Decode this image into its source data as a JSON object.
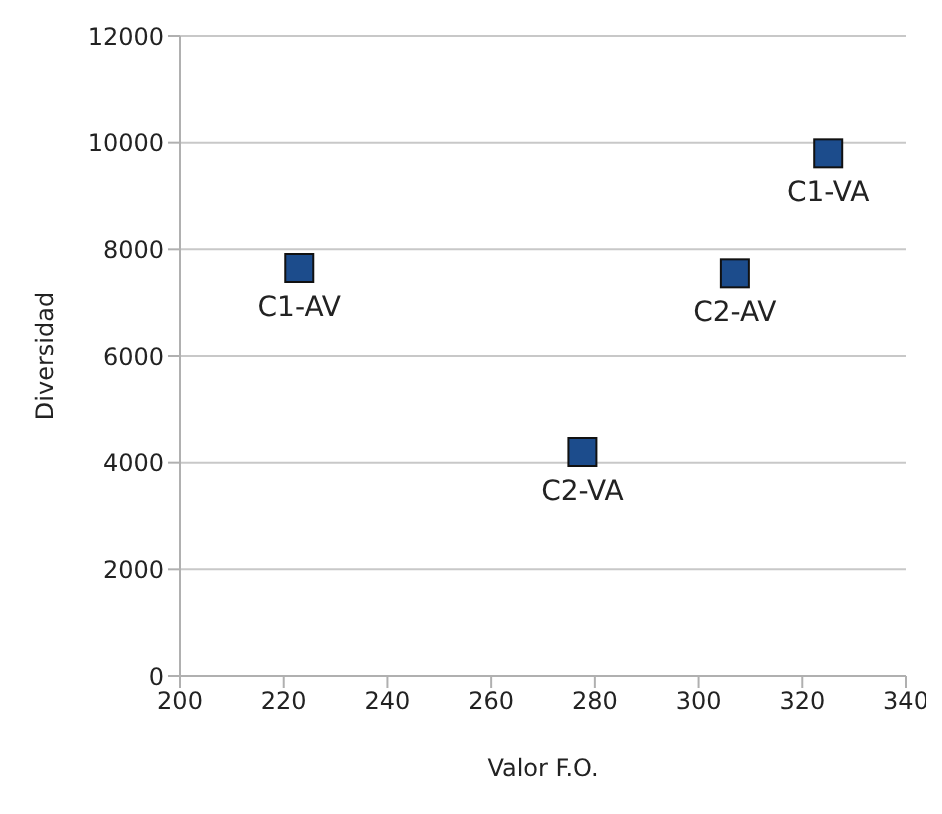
{
  "chart_data": {
    "type": "scatter",
    "xlabel": "Valor F.O.",
    "ylabel": "Diversidad",
    "x": [
      223,
      277.6,
      307,
      325
    ],
    "values": [
      7650,
      4200,
      7550,
      9800
    ],
    "color": "#1c4c8c",
    "marker": "square",
    "xlim": [
      200,
      340
    ],
    "xticks": [
      200,
      220,
      240,
      260,
      280,
      300,
      320,
      340
    ],
    "ylim": [
      0,
      12000
    ],
    "yticks": [
      0,
      2000,
      4000,
      6000,
      8000,
      10000,
      12000
    ],
    "grid": "y",
    "annotations": [
      {
        "text": "C1-AV",
        "x": 223,
        "y": 7650
      },
      {
        "text": "C2-VA",
        "x": 277.6,
        "y": 4200
      },
      {
        "text": "C2-AV",
        "x": 307,
        "y": 7550
      },
      {
        "text": "C1-VA",
        "x": 325,
        "y": 9800
      }
    ]
  }
}
